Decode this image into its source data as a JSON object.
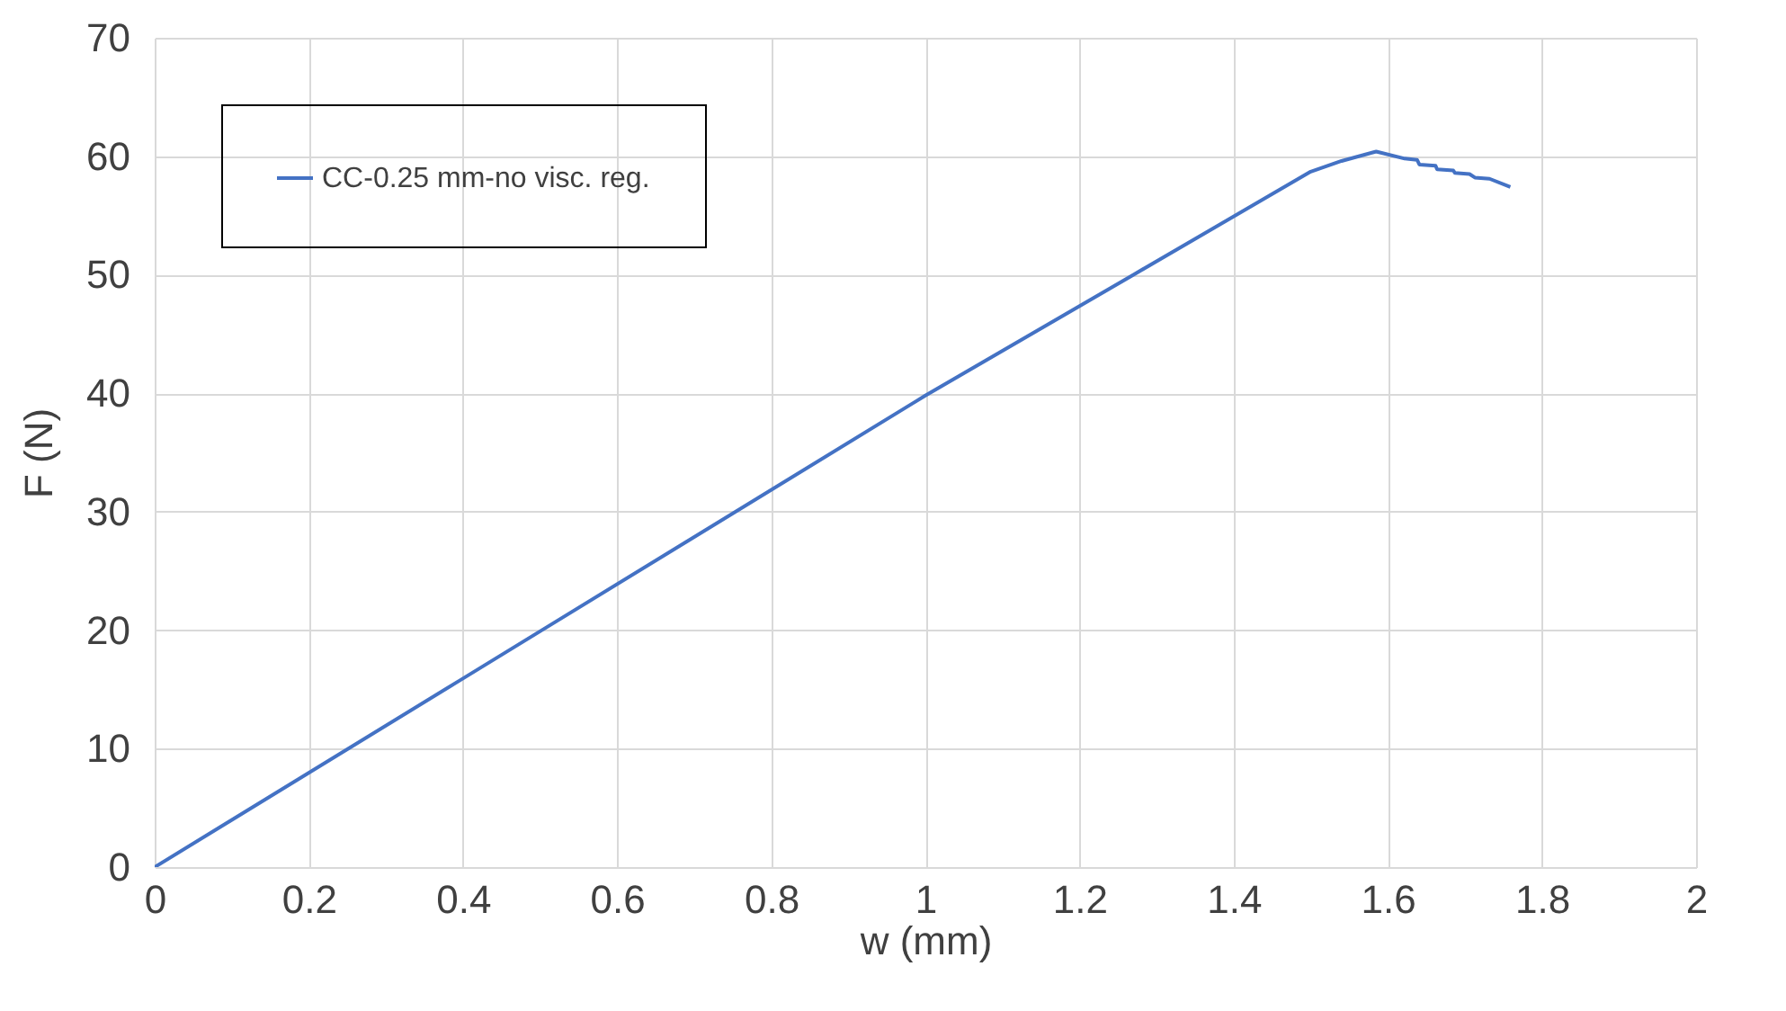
{
  "chart_data": {
    "type": "line",
    "xlabel": "w (mm)",
    "ylabel": "F (N)",
    "x": [
      0,
      0.5,
      1,
      1.27,
      1.5,
      1.54,
      1.585,
      1.622,
      1.638,
      1.641,
      1.662,
      1.664,
      1.685,
      1.687,
      1.706,
      1.713,
      1.732,
      1.759
    ],
    "series": [
      {
        "name": "CC-0.25 mm-no visc. reg.",
        "color": "#4472c4",
        "values": [
          0,
          19.9,
          39.8,
          50,
          58.7,
          59.6,
          60.4,
          59.8,
          59.7,
          59.3,
          59.2,
          58.9,
          58.8,
          58.6,
          58.5,
          58.2,
          58.1,
          57.4
        ]
      }
    ],
    "xlim": [
      0,
      2
    ],
    "xticks": [
      0,
      0.2,
      0.4,
      0.6,
      0.8,
      1,
      1.2,
      1.4,
      1.6,
      1.8,
      2
    ],
    "ylim": [
      0,
      70
    ],
    "yticks": [
      0,
      10,
      20,
      30,
      40,
      50,
      60,
      70
    ],
    "grid": true,
    "legend": "top left",
    "marker": "none",
    "line_style": "solid"
  }
}
